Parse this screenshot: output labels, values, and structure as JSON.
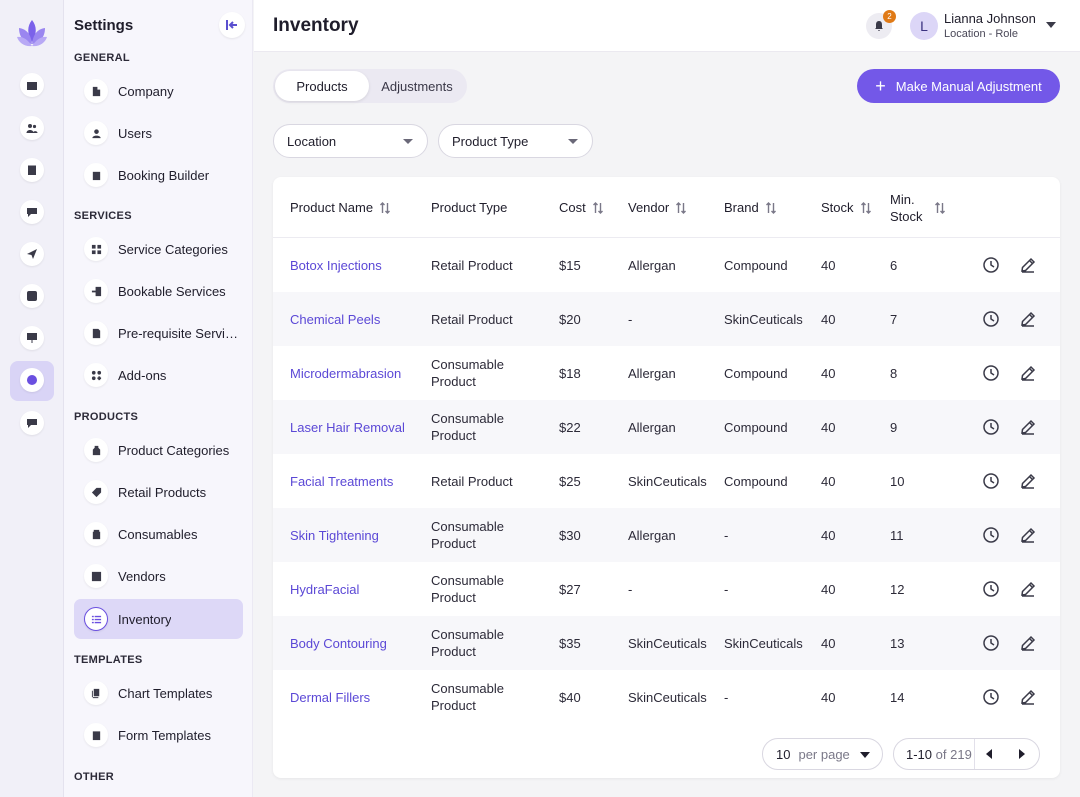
{
  "app": {
    "accent": "#7358e8",
    "link_color": "#5b48d6"
  },
  "rail": {
    "items": [
      {
        "icon": "calendar-icon"
      },
      {
        "icon": "users-icon"
      },
      {
        "icon": "clipboard-icon"
      },
      {
        "icon": "chat-icon"
      },
      {
        "icon": "send-icon"
      },
      {
        "icon": "dollar-icon"
      },
      {
        "icon": "presentation-icon"
      },
      {
        "icon": "gear-icon",
        "active": true
      },
      {
        "icon": "feedback-icon"
      }
    ]
  },
  "sidebar": {
    "title": "Settings",
    "sections": {
      "general": "GENERAL",
      "services": "SERVICES",
      "products": "PRODUCTS",
      "templates": "TEMPLATES",
      "other": "OTHER"
    },
    "items": {
      "company": "Company",
      "users": "Users",
      "booking_builder": "Booking Builder",
      "service_categories": "Service Categories",
      "bookable_services": "Bookable Services",
      "prerequisite_services": "Pre-requisite Services",
      "addons": "Add-ons",
      "product_categories": "Product Categories",
      "retail_products": "Retail Products",
      "consumables": "Consumables",
      "vendors": "Vendors",
      "inventory": "Inventory",
      "chart_templates": "Chart Templates",
      "form_templates": "Form Templates"
    }
  },
  "header": {
    "title": "Inventory",
    "notification_count": "2",
    "user_initial": "L",
    "user_name": "Lianna Johnson",
    "user_role": "Location - Role"
  },
  "tabs": {
    "products": "Products",
    "adjustments": "Adjustments",
    "active": "products"
  },
  "actions": {
    "manual_adjustment": "Make Manual Adjustment"
  },
  "filters": {
    "location": "Location",
    "product_type": "Product Type"
  },
  "table": {
    "columns": {
      "product_name": "Product Name",
      "product_type": "Product Type",
      "cost": "Cost",
      "vendor": "Vendor",
      "brand": "Brand",
      "stock": "Stock",
      "min_stock": "Min. Stock"
    },
    "rows": [
      {
        "name": "Botox Injections",
        "type": "Retail Product",
        "cost": "$15",
        "vendor": "Allergan",
        "brand": "Compound",
        "stock": "40",
        "min": "6"
      },
      {
        "name": "Chemical Peels",
        "type": "Retail Product",
        "cost": "$20",
        "vendor": "-",
        "brand": "SkinCeuticals",
        "stock": "40",
        "min": "7"
      },
      {
        "name": "Microdermabrasion",
        "type": "Consumable Product",
        "cost": "$18",
        "vendor": "Allergan",
        "brand": "Compound",
        "stock": "40",
        "min": "8"
      },
      {
        "name": "Laser Hair Removal",
        "type": "Consumable Product",
        "cost": "$22",
        "vendor": "Allergan",
        "brand": "Compound",
        "stock": "40",
        "min": "9"
      },
      {
        "name": "Facial Treatments",
        "type": "Retail Product",
        "cost": "$25",
        "vendor": "SkinCeuticals",
        "brand": "Compound",
        "stock": "40",
        "min": "10"
      },
      {
        "name": "Skin Tightening",
        "type": "Consumable Product",
        "cost": "$30",
        "vendor": "Allergan",
        "brand": "-",
        "stock": "40",
        "min": "11"
      },
      {
        "name": "HydraFacial",
        "type": "Consumable Product",
        "cost": "$27",
        "vendor": "-",
        "brand": "-",
        "stock": "40",
        "min": "12"
      },
      {
        "name": "Body Contouring",
        "type": "Consumable Product",
        "cost": "$35",
        "vendor": "SkinCeuticals",
        "brand": "SkinCeuticals",
        "stock": "40",
        "min": "13"
      },
      {
        "name": "Dermal Fillers",
        "type": "Consumable Product",
        "cost": "$40",
        "vendor": "SkinCeuticals",
        "brand": "-",
        "stock": "40",
        "min": "14"
      }
    ]
  },
  "pagination": {
    "per_page_value": "10",
    "per_page_label": "per page",
    "range": "1-10",
    "of_total": "of 219"
  }
}
